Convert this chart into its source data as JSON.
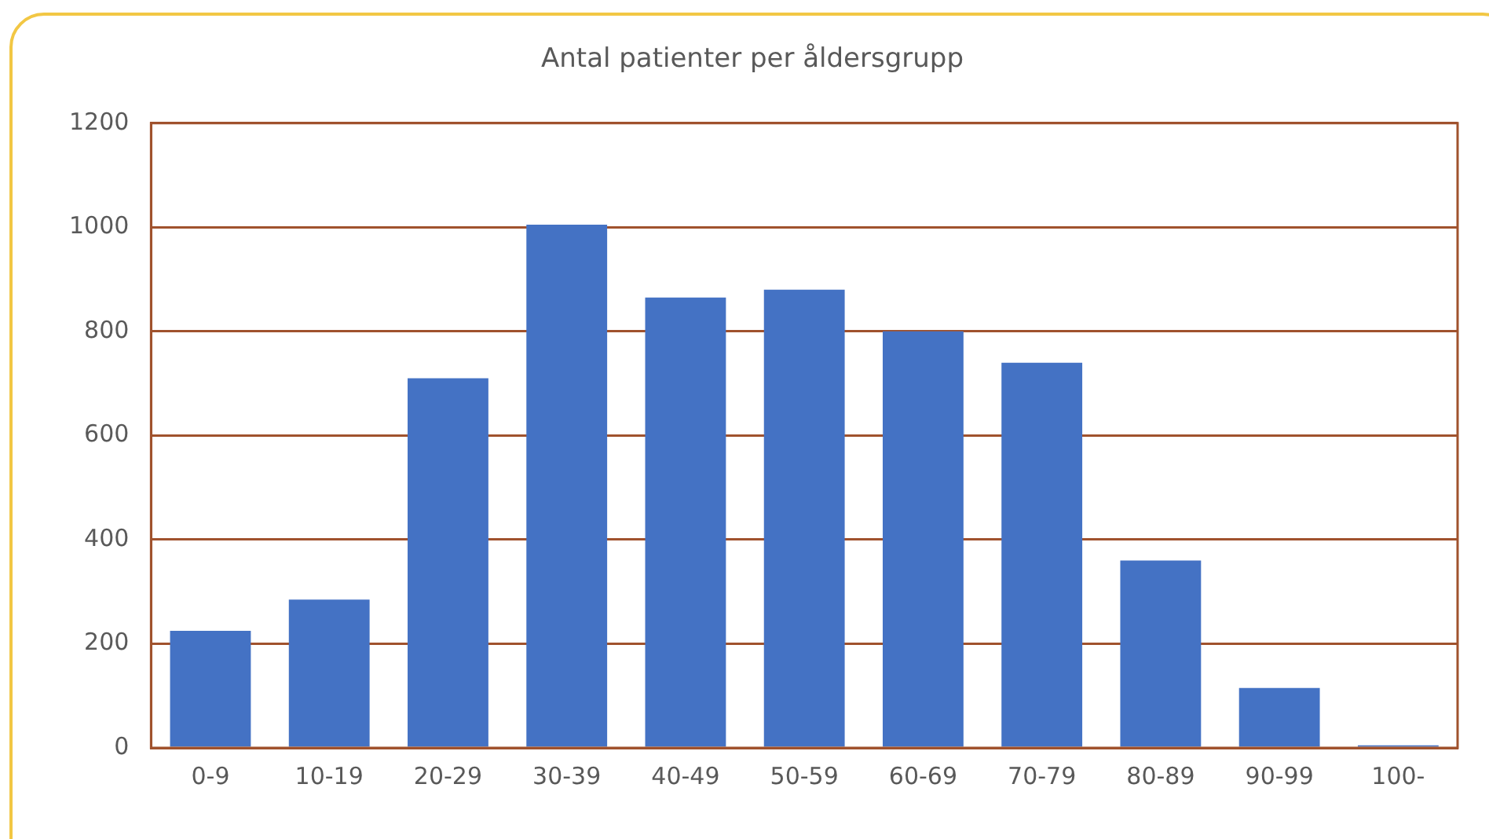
{
  "chart_data": {
    "type": "bar",
    "title": "Antal patienter per åldersgrupp",
    "categories": [
      "0-9",
      "10-19",
      "20-29",
      "30-39",
      "40-49",
      "50-59",
      "60-69",
      "70-79",
      "80-89",
      "90-99",
      "100-"
    ],
    "values": [
      225,
      285,
      710,
      1005,
      865,
      880,
      800,
      740,
      360,
      115,
      5
    ],
    "color": "#4472c4",
    "ylim": [
      0,
      1200
    ],
    "yticks": [
      0,
      200,
      400,
      600,
      800,
      1000,
      1200
    ],
    "grid": "y"
  }
}
